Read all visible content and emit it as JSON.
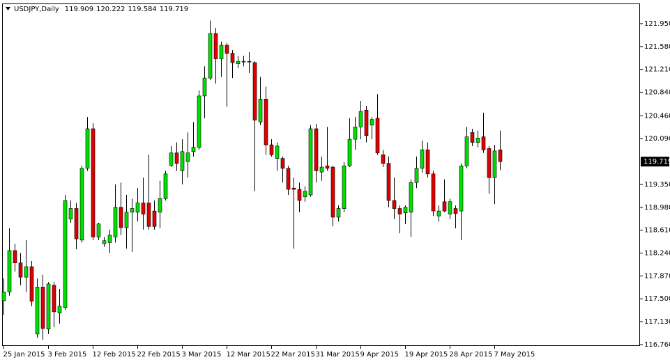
{
  "chart_data": {
    "type": "candlestick",
    "title": "USDJPY,Daily",
    "title_values": [
      119.909,
      120.222,
      119.584,
      119.719
    ],
    "categories": [
      "25 Jan 2015",
      null,
      null,
      null,
      null,
      null,
      null,
      null,
      "3 Feb 2015",
      null,
      null,
      null,
      null,
      null,
      null,
      null,
      "12 Feb 2015",
      null,
      null,
      null,
      null,
      null,
      null,
      null,
      "22 Feb 2015",
      null,
      null,
      null,
      null,
      null,
      null,
      null,
      "3 Mar 2015",
      null,
      null,
      null,
      null,
      null,
      null,
      null,
      "12 Mar 2015",
      null,
      null,
      null,
      null,
      null,
      null,
      null,
      "22 Mar 2015",
      null,
      null,
      null,
      null,
      null,
      null,
      null,
      "31 Mar 2015",
      null,
      null,
      null,
      null,
      null,
      null,
      null,
      "9 Apr 2015",
      null,
      null,
      null,
      null,
      null,
      null,
      null,
      "19 Apr 2015",
      null,
      null,
      null,
      null,
      null,
      null,
      null,
      "28 Apr 2015",
      null,
      null,
      null,
      null,
      null,
      null,
      null,
      "7 May 2015",
      null
    ],
    "open": [
      117.47,
      117.61,
      118.28,
      118.08,
      117.85,
      118.02,
      116.93,
      117.69,
      117.01,
      117.72,
      117.27,
      117.36,
      118.79,
      118.96,
      118.45,
      119.61,
      120.25,
      118.5,
      118.39,
      118.41,
      118.5,
      118.98,
      118.65,
      118.9,
      118.9,
      119.05,
      119.05,
      118.92,
      118.9,
      119.12,
      119.66,
      119.86,
      119.57,
      119.72,
      119.88,
      119.95,
      120.78,
      121.07,
      121.79,
      121.38,
      121.6,
      121.47,
      121.3,
      121.34,
      121.34,
      121.32,
      120.36,
      120.73,
      119.99,
      119.77,
      119.77,
      119.61,
      119.29,
      119.27,
      119.15,
      119.18,
      120.25,
      119.55,
      119.65,
      119.63,
      118.82,
      118.96,
      119.65,
      120.08,
      120.28,
      120.55,
      120.31,
      120.42,
      119.83,
      119.69,
      119.09,
      118.96,
      118.89,
      118.9,
      119.38,
      119.61,
      119.91,
      119.52,
      118.84,
      119.07,
      118.87,
      118.96,
      118.92,
      119.65,
      120.19,
      120.03,
      120.12,
      119.93,
      119.46,
      119.909
    ],
    "high": [
      117.83,
      118.64,
      118.39,
      118.24,
      118.45,
      118.11,
      117.83,
      117.89,
      117.77,
      117.77,
      117.66,
      119.18,
      119.09,
      119.05,
      119.65,
      120.44,
      120.34,
      118.73,
      118.5,
      118.62,
      119.35,
      119.38,
      119.18,
      119.12,
      119.29,
      119.46,
      119.83,
      119.09,
      119.41,
      119.57,
      119.97,
      120.03,
      120.08,
      120.19,
      120.36,
      120.87,
      121.26,
      122.0,
      121.88,
      121.66,
      121.64,
      121.52,
      121.43,
      121.43,
      121.49,
      121.34,
      121.09,
      120.93,
      120.08,
      120.03,
      119.8,
      119.65,
      119.46,
      119.38,
      119.32,
      120.31,
      120.33,
      119.8,
      120.28,
      119.65,
      119.01,
      119.71,
      120.42,
      120.44,
      120.7,
      120.62,
      120.44,
      120.81,
      119.91,
      119.8,
      119.46,
      119.01,
      119.01,
      119.43,
      119.8,
      120.06,
      120.03,
      119.57,
      119.01,
      119.43,
      119.12,
      119.01,
      119.69,
      120.28,
      120.25,
      120.22,
      120.51,
      119.97,
      119.99,
      120.222
    ],
    "low": [
      117.24,
      117.55,
      117.94,
      117.72,
      117.61,
      117.38,
      116.87,
      116.84,
      116.93,
      117.04,
      117.1,
      117.32,
      118.73,
      118.3,
      118.41,
      119.57,
      118.45,
      118.45,
      118.34,
      118.24,
      118.41,
      118.53,
      118.31,
      118.26,
      118.75,
      118.62,
      118.62,
      118.62,
      118.64,
      119.09,
      119.63,
      119.57,
      119.35,
      119.46,
      119.8,
      119.91,
      120.42,
      121.04,
      120.98,
      121.09,
      120.61,
      121.07,
      121.23,
      121.26,
      121.15,
      119.24,
      120.31,
      119.83,
      119.8,
      119.57,
      119.38,
      119.18,
      118.31,
      118.9,
      119.07,
      119.15,
      119.38,
      119.41,
      119.57,
      118.67,
      118.75,
      118.9,
      119.63,
      119.91,
      120.08,
      120.03,
      120.08,
      119.83,
      119.63,
      118.98,
      118.79,
      118.56,
      118.71,
      118.5,
      119.29,
      119.54,
      119.46,
      118.84,
      118.75,
      118.9,
      118.79,
      118.64,
      118.45,
      119.61,
      119.97,
      119.95,
      119.86,
      119.2,
      119.03,
      119.584
    ],
    "close": [
      117.61,
      118.28,
      118.08,
      117.85,
      118.02,
      117.46,
      117.69,
      117.02,
      117.74,
      117.29,
      117.38,
      119.09,
      118.96,
      118.47,
      119.61,
      120.25,
      118.5,
      118.71,
      118.44,
      118.53,
      118.98,
      118.65,
      118.9,
      118.96,
      119.05,
      118.87,
      118.67,
      118.67,
      119.12,
      119.52,
      119.86,
      119.69,
      119.88,
      119.86,
      119.95,
      120.78,
      121.07,
      121.79,
      121.38,
      121.6,
      121.47,
      121.32,
      121.34,
      121.33,
      121.33,
      120.39,
      120.73,
      119.99,
      119.83,
      119.97,
      119.61,
      119.27,
      119.27,
      119.09,
      119.24,
      120.25,
      119.57,
      119.63,
      119.61,
      118.82,
      118.96,
      119.65,
      120.08,
      120.28,
      120.53,
      120.14,
      120.4,
      119.86,
      119.69,
      119.09,
      118.96,
      118.87,
      118.98,
      119.38,
      119.61,
      119.91,
      119.52,
      118.92,
      118.92,
      118.92,
      119.07,
      118.88,
      119.65,
      120.12,
      120.03,
      120.1,
      119.91,
      119.46,
      119.89,
      119.719
    ],
    "up_color": "#00e000",
    "down_color": "#e00000",
    "wick_color": "#000000",
    "ylim": [
      116.737,
      122.276
    ],
    "yticks": [
      {
        "value": 121.95,
        "label": "121.950"
      },
      {
        "value": 121.58,
        "label": "121.580"
      },
      {
        "value": 121.21,
        "label": "121.210"
      },
      {
        "value": 120.84,
        "label": "120.840"
      },
      {
        "value": 120.46,
        "label": "120.460"
      },
      {
        "value": 120.09,
        "label": "120.090"
      },
      {
        "value": 119.35,
        "label": "119.350"
      },
      {
        "value": 118.98,
        "label": "118.980"
      },
      {
        "value": 118.61,
        "label": "118.610"
      },
      {
        "value": 118.24,
        "label": "118.240"
      },
      {
        "value": 117.87,
        "label": "117.870"
      },
      {
        "value": 117.5,
        "label": "117.500"
      },
      {
        "value": 117.13,
        "label": "117.130"
      },
      {
        "value": 116.76,
        "label": "116.760"
      }
    ],
    "last_price": {
      "value": 119.719,
      "label": "119.719"
    }
  }
}
